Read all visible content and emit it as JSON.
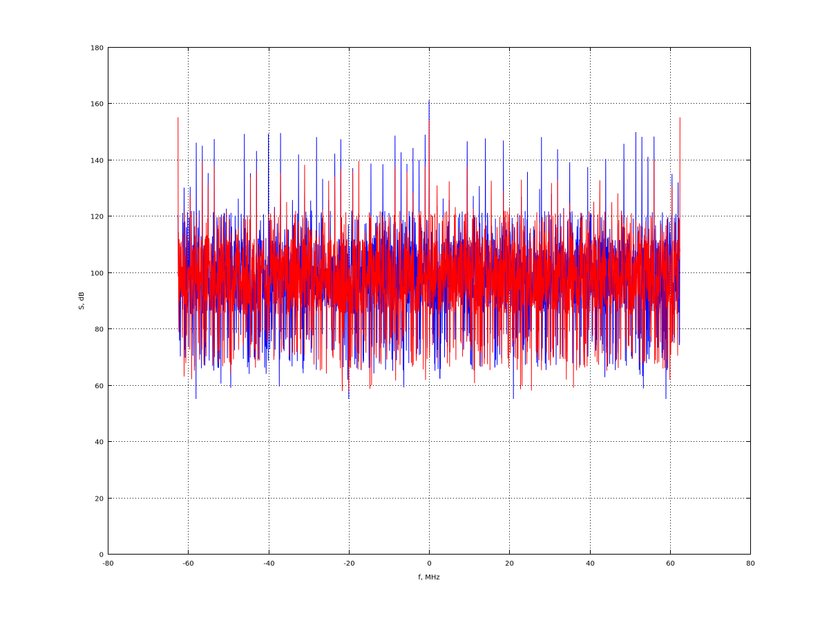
{
  "chart_data": {
    "type": "line",
    "title": "",
    "xlabel": "f, MHz",
    "ylabel": "S, dB",
    "xlim": [
      -80,
      80
    ],
    "ylim": [
      0,
      180
    ],
    "xticks": [
      "-80",
      "-60",
      "-40",
      "-20",
      "0",
      "20",
      "40",
      "60",
      "80"
    ],
    "yticks": [
      "0",
      "20",
      "40",
      "60",
      "80",
      "100",
      "120",
      "140",
      "160",
      "180"
    ],
    "grid": true,
    "grid_style": "dotted",
    "legend": "none",
    "series": [
      {
        "color": "#0000ff",
        "x_range": [
          -62.5,
          62.5
        ],
        "noise_band_db": [
          80,
          112
        ],
        "spike_spacing_mhz": 1.5,
        "spike_level_db": [
          115,
          150
        ],
        "peaks": [
          {
            "x": 0,
            "y": 161
          },
          {
            "x": -28,
            "y": 148
          },
          {
            "x": 28,
            "y": 148
          }
        ],
        "minima": [
          {
            "x": -58,
            "y": 55
          },
          {
            "x": -20,
            "y": 55
          },
          {
            "x": 21,
            "y": 55
          },
          {
            "x": 59,
            "y": 55
          }
        ]
      },
      {
        "color": "#ff0000",
        "x_range": [
          -62.5,
          62.5
        ],
        "noise_band_db": [
          80,
          112
        ],
        "spike_spacing_mhz": 1.5,
        "spike_level_db": [
          112,
          140
        ],
        "peaks": [
          {
            "x": -62.5,
            "y": 155
          },
          {
            "x": 0,
            "y": 154
          },
          {
            "x": 62.5,
            "y": 155
          }
        ],
        "minima": [
          {
            "x": -61,
            "y": 63
          },
          {
            "x": -20,
            "y": 58
          },
          {
            "x": 25.5,
            "y": 58
          },
          {
            "x": 36,
            "y": 59
          }
        ]
      }
    ]
  }
}
